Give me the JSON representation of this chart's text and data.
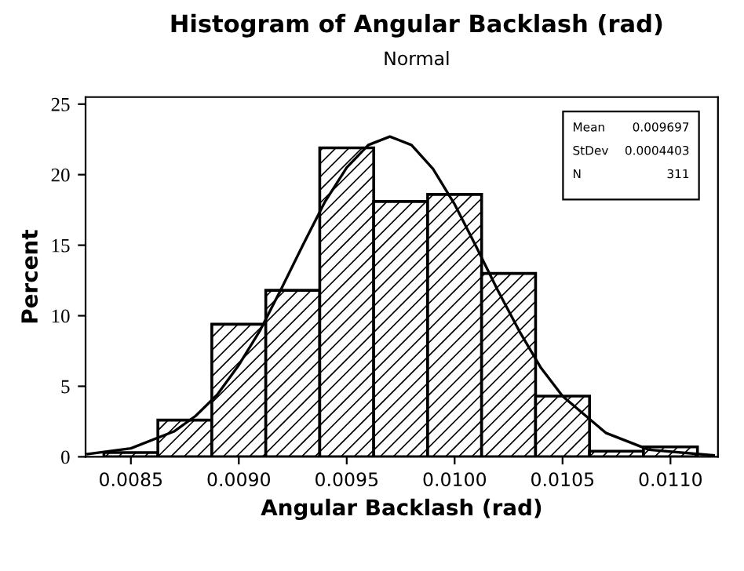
{
  "chart_data": {
    "type": "histogram",
    "title": "Histogram of Angular Backlash (rad)",
    "subtitle": "Normal",
    "xlabel": "Angular Backlash (rad)",
    "ylabel": "Percent",
    "series": [
      {
        "color": "#000000",
        "bins": [
          0.008375,
          0.008625,
          0.008875,
          0.009125,
          0.009375,
          0.009625,
          0.009875,
          0.010125,
          0.010375,
          0.010625,
          0.010875,
          0.011125
        ],
        "values": [
          0.3,
          2.6,
          9.4,
          11.8,
          21.9,
          18.1,
          18.6,
          13.0,
          4.3,
          0.4,
          0.7
        ]
      },
      {
        "type": "line",
        "color": "#000000",
        "x": [
          0.0083,
          0.0085,
          0.0087,
          0.0088,
          0.0089,
          0.009,
          0.0091,
          0.0092,
          0.0093,
          0.0094,
          0.0095,
          0.0096,
          0.0097,
          0.0098,
          0.0099,
          0.01,
          0.0101,
          0.0102,
          0.0103,
          0.0104,
          0.0105,
          0.0107,
          0.0109,
          0.0112
        ],
        "values": [
          0.2,
          0.6,
          1.8,
          2.9,
          4.4,
          6.5,
          9.0,
          12.0,
          15.1,
          18.1,
          20.5,
          22.1,
          22.7,
          22.1,
          20.4,
          17.9,
          14.9,
          11.8,
          8.9,
          6.3,
          4.3,
          1.7,
          0.5,
          0.1
        ]
      }
    ],
    "xlim": [
      0.00829,
      0.01122
    ],
    "xticks": [
      {
        "value": 0.0085,
        "label": "0.0085"
      },
      {
        "value": 0.009,
        "label": "0.0090"
      },
      {
        "value": 0.0095,
        "label": "0.0095"
      },
      {
        "value": 0.01,
        "label": "0.0100"
      },
      {
        "value": 0.0105,
        "label": "0.0105"
      },
      {
        "value": 0.011,
        "label": "0.0110"
      }
    ],
    "ylim": [
      0,
      25.5
    ],
    "yticks": [
      0,
      5,
      10,
      15,
      20,
      25
    ],
    "grid": false,
    "annotations": [
      "Mean",
      "0.009697",
      "StDev",
      "0.0004403",
      "N",
      "311"
    ]
  }
}
